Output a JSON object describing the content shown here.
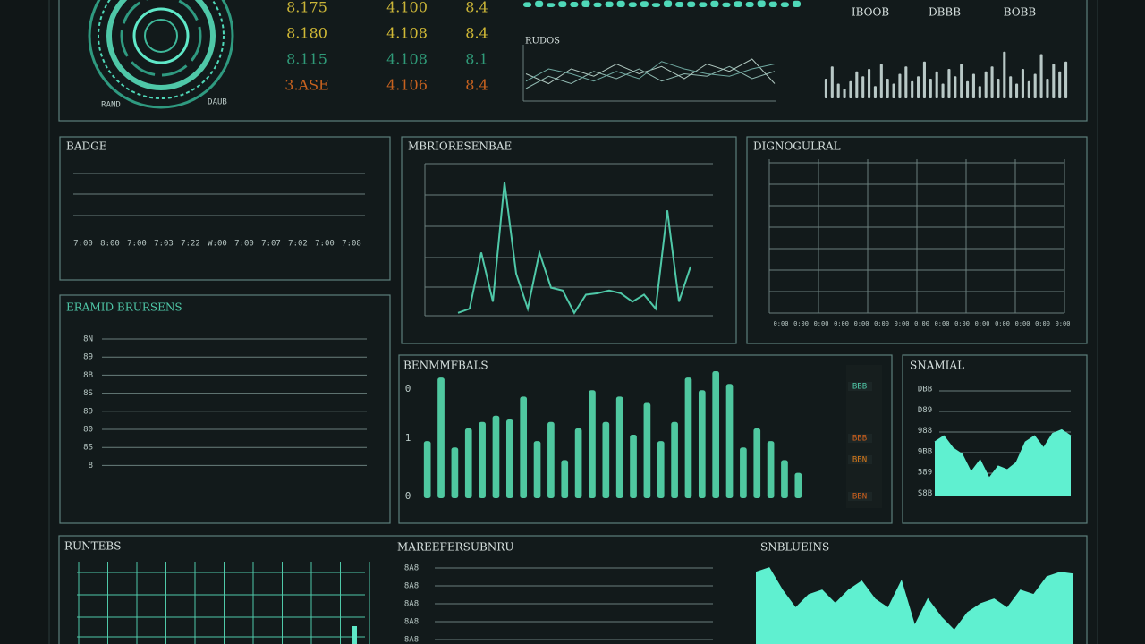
{
  "gauge": {
    "labels": [
      "RAND",
      "DAUB"
    ]
  },
  "stats": {
    "rows": [
      {
        "cells": [
          "8.175",
          "4.100",
          "8.4"
        ],
        "color": "#c9b438"
      },
      {
        "cells": [
          "8.180",
          "4.108",
          "8.4"
        ],
        "color": "#d1b936"
      },
      {
        "cells": [
          "8.115",
          "4.108",
          "8.1"
        ],
        "color": "#2f9a78"
      },
      {
        "cells": [
          "3.ASE",
          "4.106",
          "8.4"
        ],
        "color": "#c8621f"
      }
    ]
  },
  "top_strip": {
    "values": [
      70,
      90,
      60,
      85,
      75,
      95,
      65,
      80,
      90,
      70,
      85,
      60,
      95,
      75,
      80,
      70,
      90,
      65,
      85,
      75,
      95,
      80,
      70,
      90
    ]
  },
  "mini_lines": {
    "title": "RUDOS",
    "series": [
      [
        20,
        45,
        30,
        55,
        40,
        60,
        35,
        50,
        45,
        65,
        40,
        55
      ],
      [
        50,
        30,
        60,
        45,
        70,
        50,
        65,
        40,
        70,
        55,
        80,
        30
      ],
      [
        35,
        60,
        50,
        35,
        55,
        40,
        75,
        60,
        50,
        45,
        60,
        70
      ]
    ]
  },
  "top_bars": {
    "heads": [
      "IBOOB",
      "DBBB",
      "BOBB"
    ],
    "values": [
      40,
      65,
      30,
      20,
      35,
      55,
      45,
      60,
      25,
      70,
      40,
      30,
      50,
      65,
      35,
      45,
      75,
      40,
      55,
      30,
      60,
      45,
      70,
      35,
      50,
      25,
      55,
      65,
      40,
      95,
      45,
      30,
      60,
      35,
      50,
      90,
      40,
      70,
      55,
      75
    ]
  },
  "badge": {
    "title": "BADGE",
    "labels": [
      "7:00",
      "8:00",
      "7:00",
      "7:03",
      "7:22",
      "W:00",
      "7:00",
      "7:07",
      "7:02",
      "7:00",
      "7:08"
    ]
  },
  "pulse": {
    "title": "MBRIORESENBAE",
    "values": [
      2,
      5,
      45,
      10,
      95,
      30,
      5,
      45,
      20,
      18,
      2,
      15,
      16,
      18,
      16,
      10,
      15,
      5,
      75,
      10,
      35
    ]
  },
  "grid_panel": {
    "title": "DIGNOGULRAL",
    "labels": [
      "0:00",
      "0:00",
      "0:00",
      "0:00",
      "0:00",
      "0:00",
      "0:00",
      "0:00",
      "0:00",
      "0:00",
      "0:00",
      "0:00",
      "0:00",
      "0:00",
      "0:00"
    ]
  },
  "levels": {
    "title": "ERAMID BRURSENS",
    "labels": [
      "8N",
      "89",
      "8B",
      "8S",
      "89",
      "80",
      "8S",
      "8"
    ]
  },
  "benchmark": {
    "title": "BENMMFBALS",
    "yticks": [
      "0",
      "1",
      "0"
    ],
    "values": [
      45,
      95,
      40,
      55,
      60,
      65,
      62,
      80,
      45,
      60,
      30,
      55,
      85,
      60,
      80,
      50,
      75,
      45,
      60,
      95,
      85,
      100,
      90,
      40,
      55,
      45,
      30,
      20
    ],
    "legend": [
      {
        "label": "BBB",
        "color": "#4fc8a8"
      },
      {
        "label": "BBB",
        "color": "#d0601c"
      },
      {
        "label": "BBN",
        "color": "#d97a1a"
      },
      {
        "label": "BBN",
        "color": "#d0601c"
      }
    ]
  },
  "signal": {
    "title": "SNAMIAL",
    "yticks": [
      "DBB",
      "D89",
      "988",
      "9BB",
      "589",
      "S8B"
    ],
    "values": [
      45,
      50,
      40,
      35,
      20,
      30,
      15,
      25,
      22,
      28,
      45,
      50,
      40,
      52,
      55,
      50
    ]
  },
  "runtests": {
    "title": "RUNTEBS"
  },
  "markers": {
    "title": "MAREEFERSUBNRU",
    "labels": [
      "8A8",
      "8A8",
      "8A8",
      "8A8",
      "8A8"
    ]
  },
  "signals2": {
    "title": "SNBLUEINS",
    "values": [
      80,
      85,
      60,
      40,
      55,
      60,
      45,
      60,
      70,
      50,
      40,
      70,
      20,
      50,
      30,
      15,
      35,
      45,
      50,
      40,
      60,
      55,
      75,
      80,
      78
    ]
  }
}
